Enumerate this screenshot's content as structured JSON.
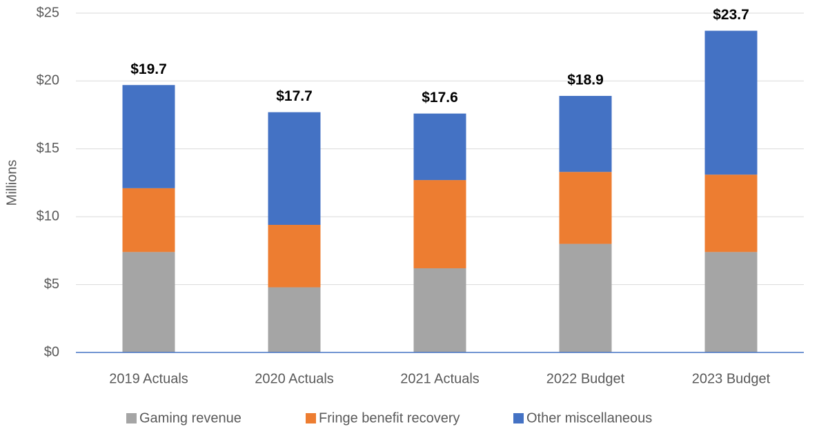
{
  "chart_data": {
    "type": "stacked_bar",
    "y_label": "Millions",
    "categories": [
      "2019 Actuals",
      "2020 Actuals",
      "2021 Actuals",
      "2022 Budget",
      "2023 Budget"
    ],
    "series": [
      {
        "name": "Gaming revenue",
        "color": "#a5a5a5",
        "values": [
          7.4,
          4.8,
          6.2,
          8.0,
          7.4
        ]
      },
      {
        "name": "Fringe benefit recovery",
        "color": "#ed7d31",
        "values": [
          4.7,
          4.6,
          6.5,
          5.3,
          5.7
        ]
      },
      {
        "name": "Other miscellaneous",
        "color": "#4472c4",
        "values": [
          7.6,
          8.3,
          4.9,
          5.6,
          10.6
        ]
      }
    ],
    "totals": [
      19.7,
      17.7,
      17.6,
      18.9,
      23.7
    ],
    "total_labels": [
      "$19.7",
      "$17.7",
      "$17.6",
      "$18.9",
      "$23.7"
    ],
    "ylim": [
      0,
      25
    ],
    "yticks": [
      {
        "value": 0,
        "label": "$0"
      },
      {
        "value": 5,
        "label": "$5"
      },
      {
        "value": 10,
        "label": "$10"
      },
      {
        "value": 15,
        "label": "$15"
      },
      {
        "value": 20,
        "label": "$20"
      },
      {
        "value": 25,
        "label": "$25"
      }
    ],
    "grid": true,
    "legend": "bottom"
  }
}
